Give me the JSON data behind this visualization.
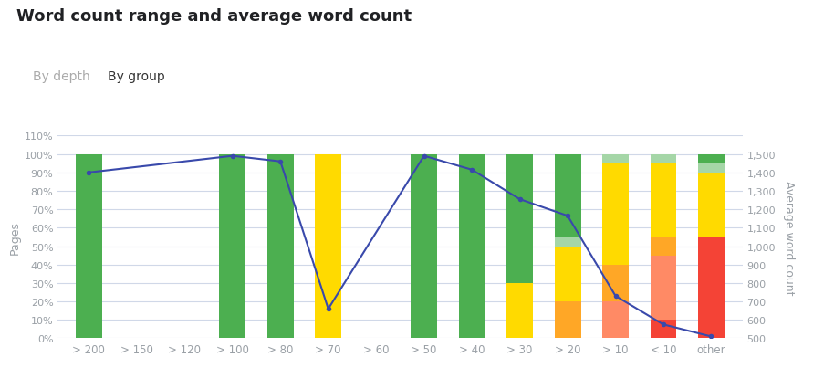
{
  "title": "Word count range and average word count",
  "tab1": "By depth",
  "tab2": "By group",
  "ylabel_left": "Pages",
  "ylabel_right": "Average word count",
  "categories": [
    "> 200",
    "> 150",
    "> 120",
    "> 100",
    "> 80",
    "> 70",
    "> 60",
    "> 50",
    "> 40",
    "> 30",
    "> 20",
    "> 10",
    "< 10",
    "other"
  ],
  "colors": {
    "lt150": "#f44336",
    "r150_300": "#ff8a65",
    "r300_500": "#ffa726",
    "r500_800": "#ffda00",
    "r800_1200": "#a5d6a7",
    "gt1200": "#4caf50",
    "line": "#3949ab"
  },
  "stacked_data": {
    "lt150": [
      0,
      0,
      0,
      0,
      0,
      0,
      0,
      0,
      0,
      0,
      0,
      0,
      10,
      55
    ],
    "r150_300": [
      0,
      0,
      0,
      0,
      0,
      0,
      0,
      0,
      0,
      0,
      0,
      20,
      35,
      0
    ],
    "r300_500": [
      0,
      0,
      0,
      0,
      0,
      0,
      0,
      0,
      0,
      0,
      20,
      20,
      10,
      0
    ],
    "r500_800": [
      0,
      0,
      0,
      0,
      0,
      100,
      0,
      0,
      0,
      30,
      30,
      55,
      40,
      35
    ],
    "r800_1200": [
      0,
      0,
      0,
      0,
      0,
      0,
      0,
      0,
      0,
      0,
      5,
      5,
      5,
      5
    ],
    "gt1200": [
      100,
      0,
      0,
      100,
      100,
      0,
      0,
      100,
      100,
      70,
      45,
      0,
      0,
      5
    ]
  },
  "avg_word_count": [
    1400,
    null,
    null,
    1490,
    1460,
    660,
    null,
    1490,
    1415,
    1255,
    1165,
    730,
    575,
    510
  ],
  "ylim_left": [
    0,
    110
  ],
  "ylim_right": [
    500,
    1600
  ],
  "yticks_left": [
    0,
    10,
    20,
    30,
    40,
    50,
    60,
    70,
    80,
    90,
    100,
    110
  ],
  "yticks_right": [
    500,
    600,
    700,
    800,
    900,
    1000,
    1100,
    1200,
    1300,
    1400,
    1500
  ],
  "background_color": "#ffffff",
  "grid_color": "#d0d8e8",
  "tab_underline_color": "#42a5f5",
  "separator_color": "#e8e8e8"
}
